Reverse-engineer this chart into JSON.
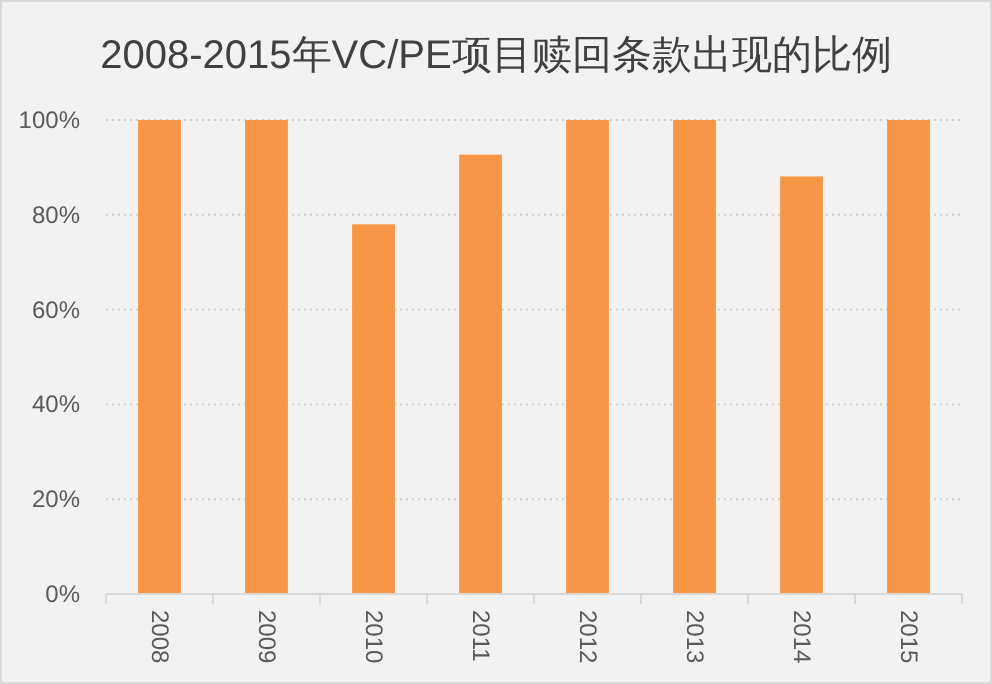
{
  "chart_data": {
    "type": "bar",
    "title": "2008-2015年VC/PE项目赎回条款出现的比例",
    "categories": [
      "2008",
      "2009",
      "2010",
      "2011",
      "2012",
      "2013",
      "2014",
      "2015"
    ],
    "values": [
      100,
      100,
      78,
      92.7,
      100,
      100,
      88.1,
      100
    ],
    "color": "#f79646",
    "ylim": [
      0,
      100
    ],
    "yticks": [
      {
        "value": 0,
        "label": "0%"
      },
      {
        "value": 20,
        "label": "20%"
      },
      {
        "value": 40,
        "label": "40%"
      },
      {
        "value": 60,
        "label": "60%"
      },
      {
        "value": 80,
        "label": "80%"
      },
      {
        "value": 100,
        "label": "100%"
      }
    ],
    "grid": "y"
  }
}
